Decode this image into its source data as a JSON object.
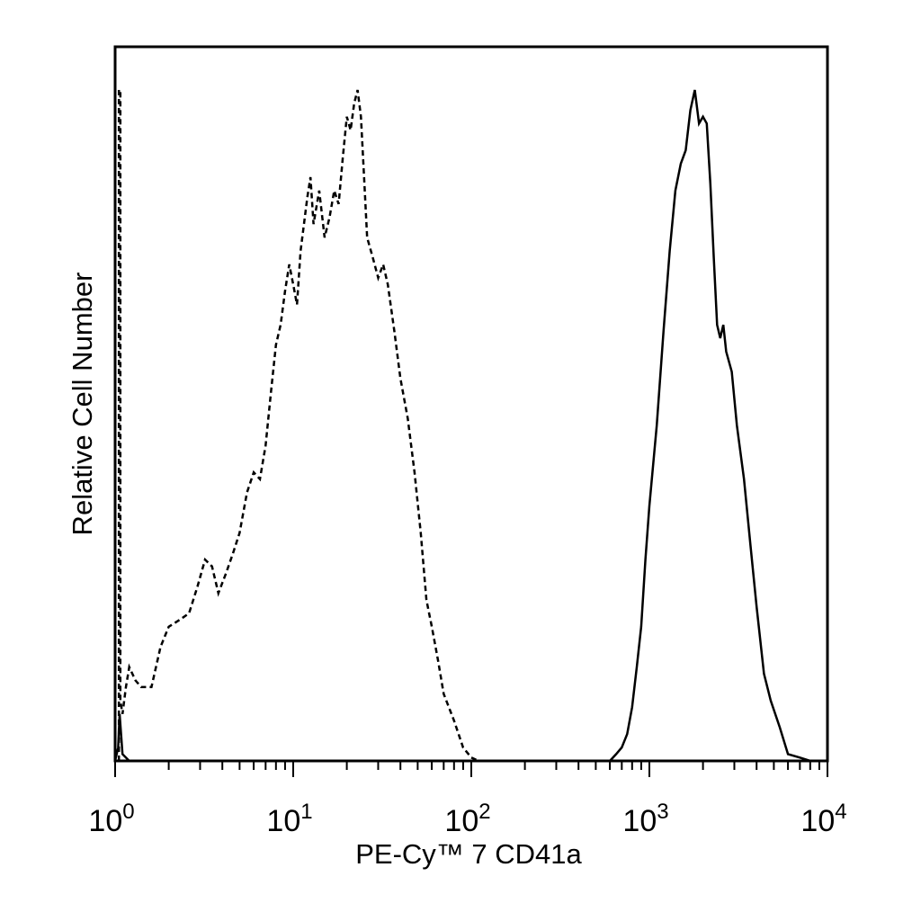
{
  "chart_data": {
    "type": "line",
    "title": "",
    "xlabel": "PE-Cy™ 7 CD41a",
    "ylabel": "Relative Cell Number",
    "x_scale": "log",
    "xlim": [
      1,
      10000
    ],
    "x_ticks": [
      {
        "base": "10",
        "exp": "0",
        "value": 1
      },
      {
        "base": "10",
        "exp": "1",
        "value": 10
      },
      {
        "base": "10",
        "exp": "2",
        "value": 100
      },
      {
        "base": "10",
        "exp": "3",
        "value": 1000
      },
      {
        "base": "10",
        "exp": "4",
        "value": 10000
      }
    ],
    "ylim": [
      0,
      100
    ],
    "y_ticks_shown": false,
    "grid": false,
    "legend": "none",
    "series": [
      {
        "style": "dashed",
        "color": "#000000",
        "points": [
          [
            1.05,
            0
          ],
          [
            1.05,
            100
          ],
          [
            1.07,
            100
          ],
          [
            1.07,
            9
          ],
          [
            1.1,
            7
          ],
          [
            1.15,
            11
          ],
          [
            1.2,
            14
          ],
          [
            1.3,
            12
          ],
          [
            1.4,
            11
          ],
          [
            1.6,
            11
          ],
          [
            1.8,
            17
          ],
          [
            2.0,
            20
          ],
          [
            2.3,
            21
          ],
          [
            2.6,
            22
          ],
          [
            2.9,
            26
          ],
          [
            3.2,
            30
          ],
          [
            3.5,
            29
          ],
          [
            3.8,
            25
          ],
          [
            4.2,
            28
          ],
          [
            4.6,
            31
          ],
          [
            5.0,
            34
          ],
          [
            5.5,
            40
          ],
          [
            6.0,
            43
          ],
          [
            6.5,
            42
          ],
          [
            7.0,
            47
          ],
          [
            7.5,
            55
          ],
          [
            8.0,
            62
          ],
          [
            8.5,
            65
          ],
          [
            9.0,
            70
          ],
          [
            9.5,
            74
          ],
          [
            10.0,
            71
          ],
          [
            10.5,
            68
          ],
          [
            11.0,
            76
          ],
          [
            12.0,
            84
          ],
          [
            12.5,
            87
          ],
          [
            13.0,
            80
          ],
          [
            14.0,
            85
          ],
          [
            15.0,
            78
          ],
          [
            16.0,
            81
          ],
          [
            17.0,
            85
          ],
          [
            18.0,
            83
          ],
          [
            19.0,
            90
          ],
          [
            20.0,
            96
          ],
          [
            21.0,
            94
          ],
          [
            22.0,
            98
          ],
          [
            23.0,
            100
          ],
          [
            24.0,
            96
          ],
          [
            25.0,
            87
          ],
          [
            26.0,
            78
          ],
          [
            28.0,
            75
          ],
          [
            30.0,
            72
          ],
          [
            32.0,
            74
          ],
          [
            34.0,
            71
          ],
          [
            37.0,
            64
          ],
          [
            40.0,
            57
          ],
          [
            44.0,
            51
          ],
          [
            48.0,
            43
          ],
          [
            52.0,
            34
          ],
          [
            56.0,
            24
          ],
          [
            60.0,
            20
          ],
          [
            65.0,
            15
          ],
          [
            70.0,
            10
          ],
          [
            80.0,
            6
          ],
          [
            90.0,
            2
          ],
          [
            100.0,
            0.5
          ],
          [
            110.0,
            0
          ]
        ]
      },
      {
        "style": "solid",
        "color": "#000000",
        "points": [
          [
            1.0,
            0
          ],
          [
            1.04,
            2
          ],
          [
            1.06,
            7
          ],
          [
            1.1,
            1
          ],
          [
            1.2,
            0
          ],
          [
            600.0,
            0
          ],
          [
            650.0,
            1
          ],
          [
            700.0,
            2
          ],
          [
            750.0,
            4
          ],
          [
            800.0,
            8
          ],
          [
            850.0,
            14
          ],
          [
            900.0,
            20
          ],
          [
            950.0,
            30
          ],
          [
            1000.0,
            38
          ],
          [
            1100.0,
            50
          ],
          [
            1200.0,
            64
          ],
          [
            1300.0,
            76
          ],
          [
            1400.0,
            85
          ],
          [
            1500.0,
            89
          ],
          [
            1600.0,
            91
          ],
          [
            1700.0,
            97
          ],
          [
            1800.0,
            100
          ],
          [
            1900.0,
            95
          ],
          [
            2000.0,
            96
          ],
          [
            2100.0,
            95
          ],
          [
            2200.0,
            86
          ],
          [
            2300.0,
            75
          ],
          [
            2400.0,
            65
          ],
          [
            2500.0,
            63
          ],
          [
            2600.0,
            65
          ],
          [
            2700.0,
            61
          ],
          [
            2900.0,
            58
          ],
          [
            3100.0,
            50
          ],
          [
            3400.0,
            42
          ],
          [
            3700.0,
            32
          ],
          [
            4000.0,
            23
          ],
          [
            4400.0,
            13
          ],
          [
            4800.0,
            9
          ],
          [
            5400.0,
            5
          ],
          [
            6000.0,
            1
          ],
          [
            7000.0,
            0.5
          ],
          [
            8000.0,
            0
          ]
        ]
      }
    ]
  }
}
